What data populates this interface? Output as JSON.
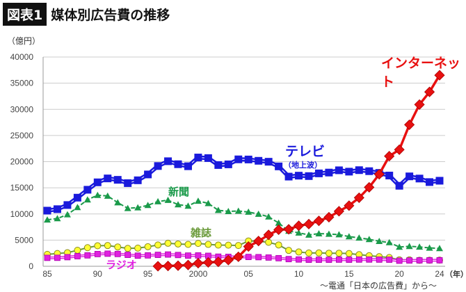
{
  "header": {
    "badge": "図表1",
    "title": "媒体別広告費の推移",
    "unit": "（億円）",
    "source": "〜電通「日本の広告費」から〜",
    "year_unit": "（年）"
  },
  "chart_data": {
    "type": "line",
    "ylim": [
      0,
      40000
    ],
    "yticks": [
      0,
      5000,
      10000,
      15000,
      20000,
      25000,
      30000,
      35000,
      40000
    ],
    "xlim": [
      1985,
      2024
    ],
    "xticks": [
      {
        "year": 1985,
        "label": "85"
      },
      {
        "year": 1990,
        "label": "90"
      },
      {
        "year": 1995,
        "label": "95"
      },
      {
        "year": 2000,
        "label": "2000"
      },
      {
        "year": 2005,
        "label": "05"
      },
      {
        "year": 2010,
        "label": "10"
      },
      {
        "year": 2015,
        "label": "15"
      },
      {
        "year": 2020,
        "label": "20"
      },
      {
        "year": 2024,
        "label": "24"
      }
    ],
    "grid": "horizontal",
    "series": [
      {
        "name": "テレビ",
        "sub": "（地上波）",
        "color": "#1a1adc",
        "marker": "square",
        "start": 1985,
        "values": [
          10633,
          10916,
          11707,
          13116,
          14627,
          16046,
          16793,
          16526,
          15891,
          16435,
          17553,
          19162,
          20079,
          19505,
          19121,
          20793,
          20681,
          19351,
          19480,
          20436,
          20411,
          20161,
          19981,
          19092,
          17139,
          17321,
          17237,
          17757,
          17913,
          18347,
          18088,
          18374,
          18178,
          17848,
          17345,
          15386,
          17184,
          16768,
          16095,
          16351
        ]
      },
      {
        "name": "新聞",
        "color": "#1a9a4a",
        "marker": "triangle",
        "start": 1985,
        "values": [
          8887,
          9136,
          9882,
          11267,
          12725,
          13592,
          13445,
          12172,
          11087,
          11211,
          11657,
          12379,
          12636,
          11787,
          11535,
          12474,
          12027,
          10707,
          10500,
          10559,
          10377,
          9986,
          9462,
          8276,
          6739,
          6396,
          5990,
          6242,
          6170,
          6057,
          5679,
          5431,
          5147,
          4784,
          4547,
          3688,
          3815,
          3697,
          3512,
          3417
        ]
      },
      {
        "name": "雑誌",
        "color": "#6a9a3a",
        "marker": "circle",
        "start": 1985,
        "values": [
          2278,
          2441,
          2599,
          3059,
          3554,
          3918,
          3966,
          3692,
          3417,
          3473,
          3743,
          4073,
          4395,
          4258,
          4183,
          4369,
          4180,
          4051,
          4035,
          3970,
          4842,
          4777,
          4585,
          4078,
          3034,
          2733,
          2542,
          2551,
          2499,
          2500,
          2443,
          2223,
          2023,
          1841,
          1675,
          1223,
          1224,
          1140,
          1163,
          1179
        ]
      },
      {
        "name": "ラジオ",
        "color": "#e020e0",
        "marker": "square-small",
        "start": 1985,
        "values": [
          1612,
          1622,
          1741,
          1927,
          2084,
          2335,
          2406,
          2350,
          2185,
          2029,
          2082,
          2181,
          2247,
          2153,
          2043,
          2071,
          1998,
          1837,
          1807,
          1795,
          1778,
          1744,
          1671,
          1549,
          1370,
          1299,
          1247,
          1246,
          1243,
          1272,
          1254,
          1285,
          1290,
          1278,
          1260,
          1066,
          1106,
          1129,
          1139,
          1149
        ]
      },
      {
        "name": "インターネット",
        "color": "#e81010",
        "marker": "diamond",
        "start": 1996,
        "values": [
          16,
          60,
          114,
          241,
          590,
          735,
          845,
          1183,
          1814,
          3777,
          4826,
          6003,
          6983,
          7069,
          7747,
          8062,
          8680,
          9381,
          10519,
          11594,
          13100,
          15094,
          17589,
          21048,
          22290,
          27052,
          30912,
          33330,
          36517
        ]
      }
    ]
  }
}
